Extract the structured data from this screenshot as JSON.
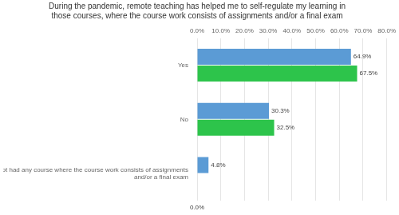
{
  "chart_data": {
    "type": "bar",
    "orientation": "horizontal",
    "title": "During the pandemic, remote teaching has helped me to self-regulate my learning in\nthose courses, where the course work consists of assignments and/or a final exam",
    "categories": [
      "Yes",
      "No",
      "I have not had any course where the course work consists of assignments\nand/or a final exam"
    ],
    "series": [
      {
        "color": "#5B9BD5",
        "values": [
          64.9,
          30.3,
          4.8
        ],
        "value_labels": [
          "64.9%",
          "30.3%",
          "4.8%"
        ]
      },
      {
        "color": "#2DC44B",
        "values": [
          67.5,
          32.5,
          0.0
        ],
        "value_labels": [
          "67.5%",
          "32.5%",
          null
        ]
      }
    ],
    "xlim": [
      0,
      80.0
    ],
    "xticks": [
      {
        "value": 0.0,
        "label": "0.0%"
      },
      {
        "value": 10.0,
        "label": "10.0%"
      },
      {
        "value": 20.0,
        "label": "20.0%"
      },
      {
        "value": 30.0,
        "label": "30.0%"
      },
      {
        "value": 40.0,
        "label": "40.0%"
      },
      {
        "value": 50.0,
        "label": "50.0%"
      },
      {
        "value": 60.0,
        "label": "60.0%"
      },
      {
        "value": 70.0,
        "label": "70.0%"
      },
      {
        "value": 80.0,
        "label": "80.0%"
      }
    ],
    "grid": true,
    "data_labels": true,
    "annotations": [
      {
        "text": "0.0%",
        "x": 0
      }
    ]
  }
}
